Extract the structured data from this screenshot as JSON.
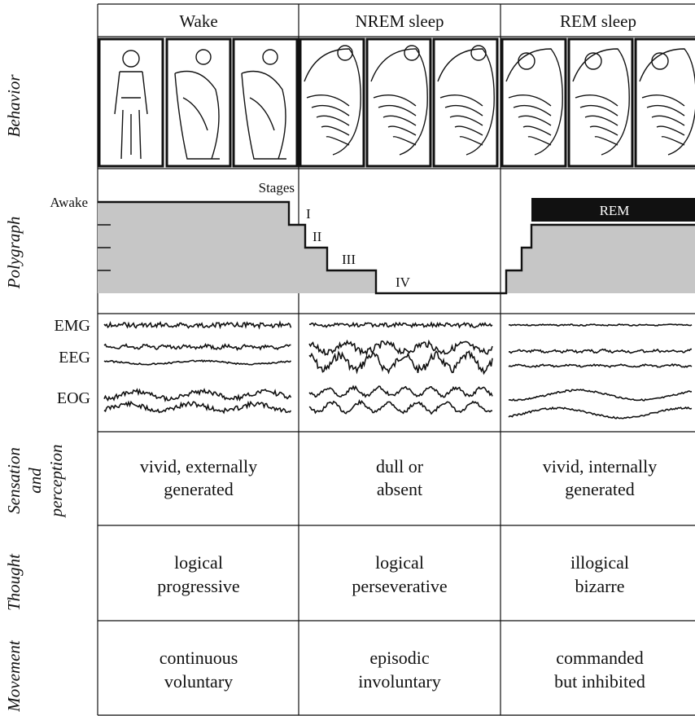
{
  "header": {
    "columns": [
      "Wake",
      "NREM sleep",
      "REM sleep"
    ]
  },
  "row_labels": {
    "behavior": "Behavior",
    "polygraph": "Polygraph",
    "sensation": [
      "Sensation",
      "and",
      "perception"
    ],
    "thought": "Thought",
    "movement": "Movement"
  },
  "polygraph": {
    "awake": "Awake",
    "stages_label": "Stages",
    "stages": [
      "I",
      "II",
      "III",
      "IV"
    ],
    "rem": "REM"
  },
  "signals": [
    "EMG",
    "EEG",
    "EOG"
  ],
  "cells": {
    "sensation": [
      [
        "vivid, externally",
        "generated"
      ],
      [
        "dull or",
        "absent"
      ],
      [
        "vivid, internally",
        "generated"
      ]
    ],
    "thought": [
      [
        "logical",
        "progressive"
      ],
      [
        "logical",
        "perseverative"
      ],
      [
        "illogical",
        "bizarre"
      ]
    ],
    "movement": [
      [
        "continuous",
        "voluntary"
      ],
      [
        "episodic",
        "involuntary"
      ],
      [
        "commanded",
        "but inhibited"
      ]
    ]
  }
}
